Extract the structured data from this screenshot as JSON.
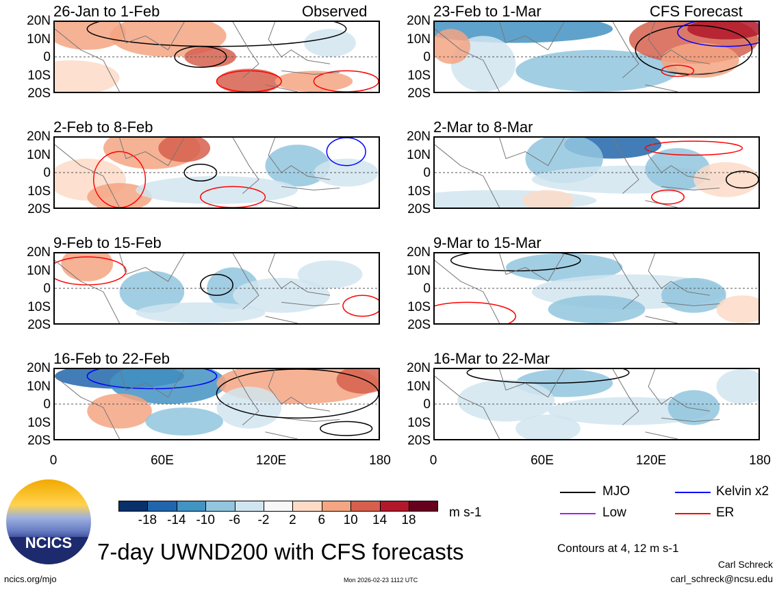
{
  "header": {
    "observed_label": "Observed",
    "forecast_label": "CFS Forecast"
  },
  "panels_left": [
    {
      "title": "26-Jan to 1-Feb"
    },
    {
      "title": "2-Feb to 8-Feb"
    },
    {
      "title": "9-Feb to 15-Feb"
    },
    {
      "title": "16-Feb to 22-Feb"
    }
  ],
  "panels_right": [
    {
      "title": "23-Feb to 1-Mar"
    },
    {
      "title": "2-Mar to 8-Mar"
    },
    {
      "title": "9-Mar to 15-Mar"
    },
    {
      "title": "16-Mar to 22-Mar"
    }
  ],
  "y_ticks": [
    "20N",
    "10N",
    "0",
    "10S",
    "20S"
  ],
  "x_ticks": [
    "0",
    "60E",
    "120E",
    "180"
  ],
  "colorbar": {
    "colors": [
      "#08306b",
      "#2166ac",
      "#4393c3",
      "#92c5de",
      "#d1e5f0",
      "#f7f7f7",
      "#fddbc7",
      "#f4a582",
      "#d6604d",
      "#b2182b",
      "#67001f"
    ],
    "labels": [
      "-18",
      "-14",
      "-10",
      "-6",
      "-2",
      "2",
      "6",
      "10",
      "14",
      "18"
    ],
    "units": "m s-1"
  },
  "legend": {
    "items": [
      {
        "label": "MJO",
        "color": "#000000"
      },
      {
        "label": "Kelvin x2",
        "color": "#0000ff"
      },
      {
        "label": "Low",
        "color": "#a020f0"
      },
      {
        "label": "ER",
        "color": "#ff0000"
      }
    ],
    "contours_note": "Contours at 4, 12 m s-1"
  },
  "footer": {
    "title": "7-day UWND200 with CFS forecasts",
    "logo_text": "NCICS",
    "url": "ncics.org/mjo",
    "timestamp": "Mon 2026-02-23 1112 UTC",
    "author": "Carl Schreck",
    "email": "carl_schreck@ncsu.edu"
  }
}
